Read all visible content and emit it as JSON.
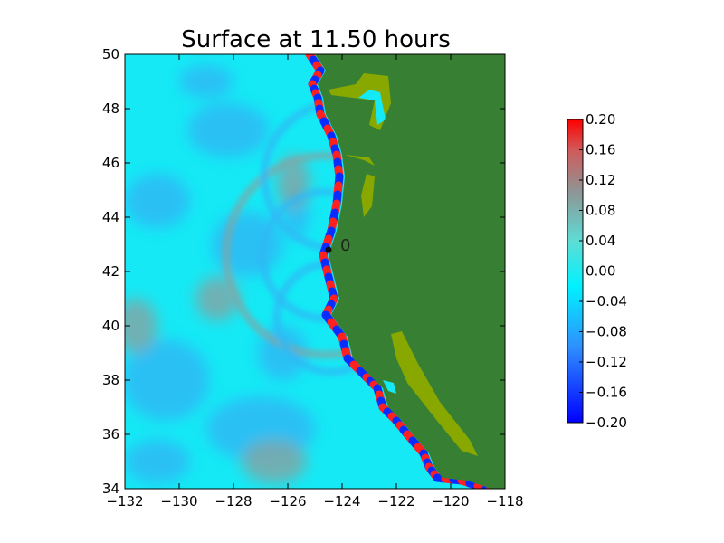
{
  "title": "Surface at 11.50 hours",
  "colors": {
    "land": "#367f33",
    "land_low": "#88a800",
    "ocean_cyan": "#14e9f5",
    "ocean_blue": "#30b8f5",
    "ocean_gray": "#7fa7a8",
    "wave_red": "#ff2020",
    "wave_blue": "#0a2cff"
  },
  "gauge": {
    "label": "0",
    "lon": -124.5,
    "lat": 42.8
  },
  "chart_data": {
    "type": "heatmap",
    "title": "Surface at 11.50 hours",
    "xlabel": "",
    "ylabel": "",
    "xlim": [
      -132,
      -118
    ],
    "ylim": [
      34,
      50
    ],
    "xticks": [
      "−132",
      "−130",
      "−128",
      "−126",
      "−124",
      "−122",
      "−120",
      "−118"
    ],
    "xtick_values": [
      -132,
      -130,
      -128,
      -126,
      -124,
      -122,
      -120,
      -118
    ],
    "yticks": [
      "34",
      "36",
      "38",
      "40",
      "42",
      "44",
      "46",
      "48",
      "50"
    ],
    "ytick_values": [
      34,
      36,
      38,
      40,
      42,
      44,
      46,
      48,
      50
    ],
    "colorbar": {
      "range": [
        -0.2,
        0.2
      ],
      "ticks": [
        "−0.20",
        "−0.16",
        "−0.12",
        "−0.08",
        "−0.04",
        "0.00",
        "0.04",
        "0.08",
        "0.12",
        "0.16",
        "0.20"
      ],
      "tick_values": [
        -0.2,
        -0.16,
        -0.12,
        -0.08,
        -0.04,
        0.0,
        0.04,
        0.08,
        0.12,
        0.16,
        0.2
      ],
      "colormap": [
        {
          "v": -0.2,
          "c": "#0000ff"
        },
        {
          "v": -0.1,
          "c": "#2f8fff"
        },
        {
          "v": -0.02,
          "c": "#00f2ff"
        },
        {
          "v": 0.04,
          "c": "#5fdcd4"
        },
        {
          "v": 0.1,
          "c": "#8a9a9a"
        },
        {
          "v": 0.16,
          "c": "#d05a5a"
        },
        {
          "v": 0.2,
          "c": "#ff0000"
        }
      ]
    },
    "coastline": [
      [
        -125.0,
        50.0
      ],
      [
        -124.6,
        49.4
      ],
      [
        -124.9,
        48.9
      ],
      [
        -124.7,
        48.4
      ],
      [
        -124.6,
        47.8
      ],
      [
        -124.2,
        47.0
      ],
      [
        -124.0,
        46.3
      ],
      [
        -123.9,
        45.5
      ],
      [
        -124.0,
        44.5
      ],
      [
        -124.2,
        43.5
      ],
      [
        -124.5,
        42.6
      ],
      [
        -124.3,
        41.8
      ],
      [
        -124.1,
        41.0
      ],
      [
        -124.4,
        40.4
      ],
      [
        -123.8,
        39.6
      ],
      [
        -123.6,
        38.8
      ],
      [
        -122.9,
        38.1
      ],
      [
        -122.5,
        37.7
      ],
      [
        -122.3,
        37.0
      ],
      [
        -121.8,
        36.5
      ],
      [
        -121.4,
        36.0
      ],
      [
        -120.8,
        35.3
      ],
      [
        -120.6,
        34.8
      ],
      [
        -120.3,
        34.4
      ],
      [
        -119.4,
        34.3
      ],
      [
        -118.5,
        34.0
      ],
      [
        -118.0,
        34.0
      ]
    ]
  }
}
